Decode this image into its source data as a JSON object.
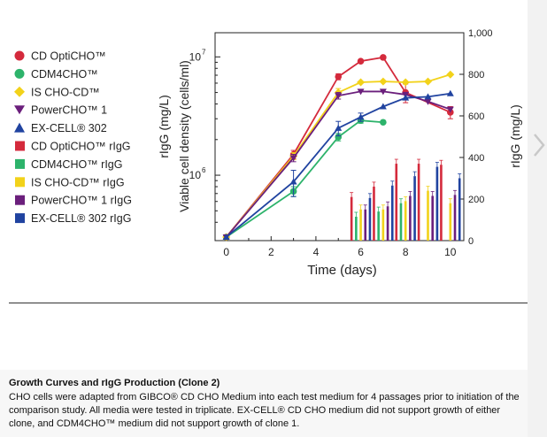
{
  "chart_data": {
    "type": "line",
    "x_label": "Time (days)",
    "y_left_label": "Viable cell density (cells/ml)",
    "y_left_label_2": "rIgG (mg/L)",
    "y_right_label": "rIgG (mg/L)",
    "x_ticks": [
      0,
      2,
      4,
      6,
      8,
      10
    ],
    "y_left_scale": "log",
    "y_left_ticks": [
      {
        "value": 1000000,
        "label": "10",
        "exp": "6"
      },
      {
        "value": 10000000,
        "label": "10",
        "exp": "7"
      }
    ],
    "y_right_ticks": [
      {
        "value": 0,
        "label": "0"
      },
      {
        "value": 200,
        "label": "200"
      },
      {
        "value": 400,
        "label": "400"
      },
      {
        "value": 600,
        "label": "600"
      },
      {
        "value": 800,
        "label": "800"
      },
      {
        "value": 1000,
        "label": "1,000"
      }
    ],
    "x_range": [
      -0.5,
      10.6
    ],
    "y_right_range": [
      0,
      1000
    ],
    "y_left_range": [
      280000,
      16000000
    ],
    "legend_position": "left",
    "series": [
      {
        "name": "CD OptiCHO™",
        "kind": "line",
        "marker": "circle",
        "color": "#d42a3c",
        "x": [
          0,
          3,
          5,
          6,
          7,
          8,
          10
        ],
        "y": [
          300000,
          1500000,
          6800000,
          9200000,
          9900000,
          5000000,
          3400000
        ],
        "err": [
          0,
          120000,
          400000,
          0,
          0,
          900000,
          400000
        ]
      },
      {
        "name": "CDM4CHO™",
        "kind": "line",
        "marker": "circle",
        "color": "#2db36b",
        "x": [
          0,
          3,
          5,
          6,
          7
        ],
        "y": [
          300000,
          730000,
          2100000,
          2900000,
          2800000
        ],
        "err": [
          0,
          70000,
          150000,
          150000,
          0
        ]
      },
      {
        "name": "IS CHO-CD™",
        "kind": "line",
        "marker": "diamond",
        "color": "#f2d21a",
        "x": [
          0,
          3,
          5,
          6,
          7,
          8,
          9,
          10
        ],
        "y": [
          300000,
          1450000,
          5000000,
          6100000,
          6200000,
          6100000,
          6200000,
          7100000
        ],
        "err": [
          0,
          100000,
          400000,
          0,
          0,
          0,
          0,
          0
        ]
      },
      {
        "name": "PowerCHO™ 1",
        "kind": "line",
        "marker": "triangle-down",
        "color": "#6b1f7c",
        "x": [
          0,
          3,
          5,
          6,
          7,
          8,
          9,
          10
        ],
        "y": [
          300000,
          1400000,
          4700000,
          5100000,
          5100000,
          4800000,
          4200000,
          3600000
        ],
        "err": [
          0,
          100000,
          300000,
          0,
          0,
          0,
          0,
          0
        ]
      },
      {
        "name": "EX-CELL® 302",
        "kind": "line",
        "marker": "triangle-up",
        "color": "#2043a0",
        "x": [
          0,
          3,
          5,
          6,
          7,
          8,
          9,
          10
        ],
        "y": [
          300000,
          880000,
          2500000,
          3100000,
          3800000,
          4500000,
          4600000,
          4900000
        ],
        "err": [
          0,
          220000,
          350000,
          250000,
          0,
          0,
          0,
          0
        ]
      },
      {
        "name": "CD OptiCHO™ rIgG",
        "kind": "bar",
        "color": "#d42a3c",
        "x": [
          6,
          7,
          8,
          9,
          10
        ],
        "y": [
          210,
          260,
          370,
          370,
          365
        ]
      },
      {
        "name": "CDM4CHO™ rIgG",
        "kind": "bar",
        "color": "#2db36b",
        "x": [
          6,
          7,
          8,
          9,
          10
        ],
        "y": [
          115,
          140,
          180,
          0,
          0
        ]
      },
      {
        "name": "IS CHO-CD™ rIgG",
        "kind": "bar",
        "color": "#f2d21a",
        "x": [
          6,
          7,
          8,
          9,
          10
        ],
        "y": [
          150,
          150,
          190,
          240,
          180
        ]
      },
      {
        "name": "PowerCHO™ 1 rIgG",
        "kind": "bar",
        "color": "#6b1f7c",
        "x": [
          6,
          7,
          8,
          9,
          10
        ],
        "y": [
          150,
          165,
          215,
          215,
          220
        ]
      },
      {
        "name": "EX-CELL® 302 rIgG",
        "kind": "bar",
        "color": "#2043a0",
        "x": [
          6,
          7,
          8,
          9,
          10
        ],
        "y": [
          205,
          265,
          310,
          355,
          300
        ]
      }
    ]
  },
  "caption": {
    "title": "Growth Curves and rIgG Production (Clone 2)",
    "body": "CHO cells were adapted from GIBCO® CD CHO Medium into each test medium for 4 passages prior to initiation of the comparison study. All media were tested in triplicate. EX-CELL® CD CHO medium did not support growth of either clone, and CDM4CHO™ medium did not support growth of clone 1."
  },
  "colors": {
    "axis": "#222222",
    "background": "#ffffff",
    "caption_background": "#f7f7f7"
  },
  "icons": {
    "side_navigation": "chevron-right-icon"
  }
}
